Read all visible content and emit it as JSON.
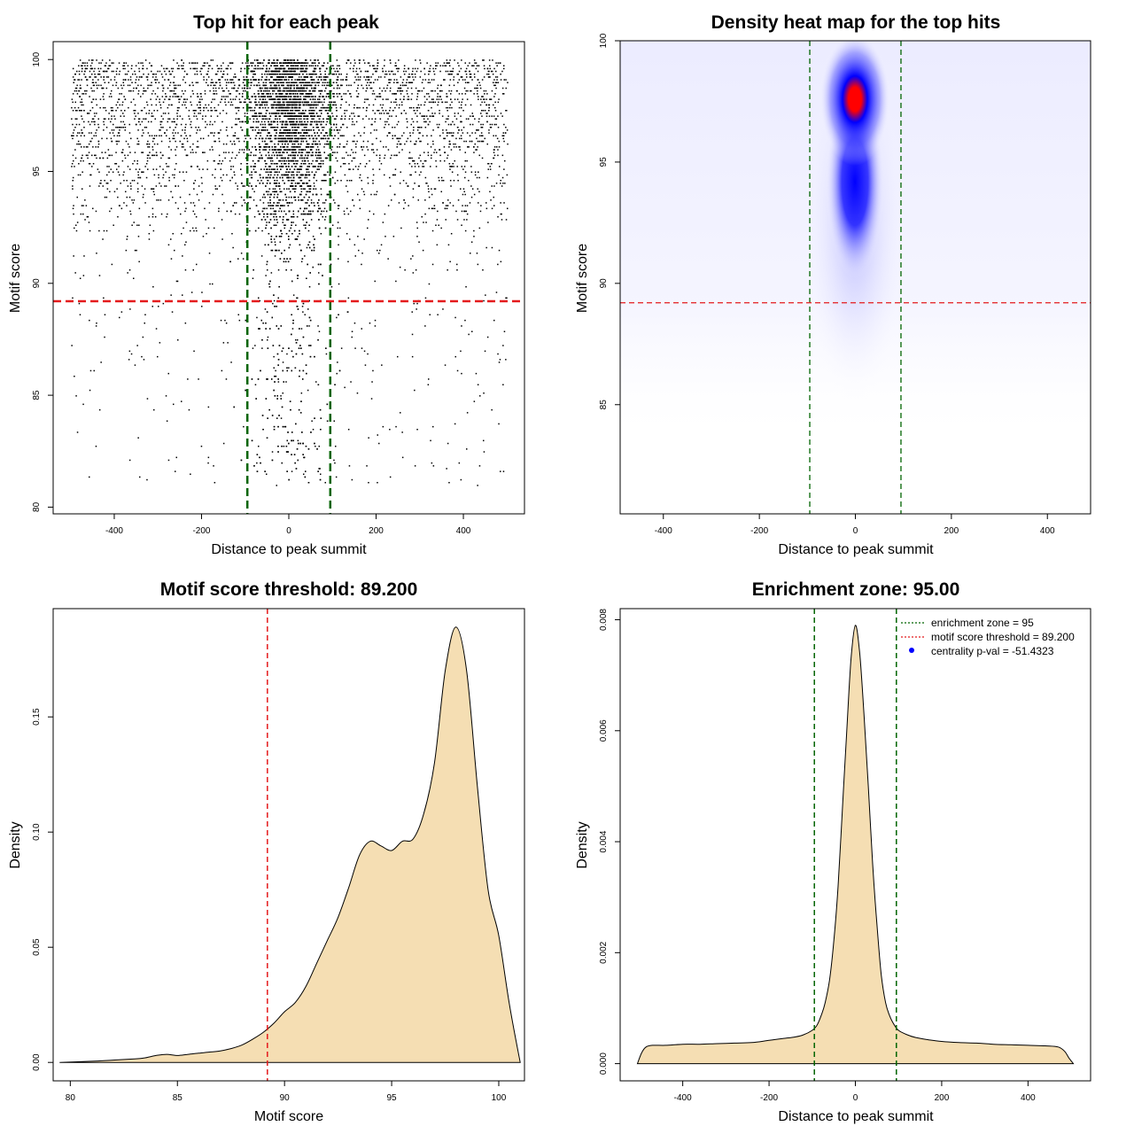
{
  "colors": {
    "green_line": "#006400",
    "red_line": "#e41a1c",
    "density_fill": "#f5deb3",
    "heat_low": "#ffffff",
    "heat_mid": "#0000ff",
    "heat_high": "#ff0000",
    "points": "#000000"
  },
  "chart_data": [
    {
      "type": "scatter",
      "title": "Top hit for each peak",
      "xlabel": "Distance to peak summit",
      "ylabel": "Motif score",
      "xlim": [
        -540,
        540
      ],
      "ylim": [
        79.7,
        100.8
      ],
      "xticks": [
        -400,
        -200,
        0,
        200,
        400
      ],
      "yticks": [
        80,
        85,
        90,
        95,
        100
      ],
      "vlines": [
        -95,
        95
      ],
      "hline": 89.2,
      "points_description": {
        "core": "dense band within about ±100 of summit, scores 88-100",
        "background": "uniform sparse hits from -500 to 500, mostly scores 89-100, sparse tail down to about 81"
      }
    },
    {
      "type": "heatmap",
      "title": "Density heat map for the top hits",
      "xlabel": "Distance to peak summit",
      "ylabel": "Motif score",
      "xlim": [
        -490,
        490
      ],
      "ylim": [
        80.5,
        100
      ],
      "xticks": [
        -400,
        -200,
        0,
        200,
        400
      ],
      "yticks": [
        85,
        90,
        95,
        100
      ],
      "vlines": [
        -95,
        95
      ],
      "hline": 89.2,
      "peak": {
        "x": 0,
        "y": 97.8
      }
    },
    {
      "type": "area",
      "title": "Motif score threshold: 89.200",
      "xlabel": "Motif score",
      "ylabel": "Density",
      "xlim": [
        79.2,
        101.2
      ],
      "ylim": [
        -0.008,
        0.197
      ],
      "xticks": [
        80,
        85,
        90,
        95,
        100
      ],
      "yticks": [
        0.0,
        0.05,
        0.1,
        0.15
      ],
      "ytick_labels": [
        "0.00",
        "0.05",
        "0.10",
        "0.15"
      ],
      "vline": 89.2,
      "x": [
        79.5,
        81,
        82,
        83,
        83.5,
        84,
        84.5,
        85,
        85.5,
        86,
        86.5,
        87,
        87.5,
        88,
        88.5,
        89,
        89.5,
        90,
        90.5,
        91,
        91.5,
        92,
        92.5,
        93,
        93.5,
        94,
        94.5,
        95,
        95.5,
        96,
        96.5,
        97,
        97.5,
        98,
        98.5,
        99,
        99.5,
        100,
        100.5,
        101
      ],
      "y": [
        0.0,
        0.0005,
        0.001,
        0.0015,
        0.002,
        0.003,
        0.0035,
        0.003,
        0.0035,
        0.004,
        0.0045,
        0.005,
        0.006,
        0.0075,
        0.01,
        0.013,
        0.017,
        0.022,
        0.026,
        0.033,
        0.043,
        0.053,
        0.063,
        0.076,
        0.09,
        0.096,
        0.094,
        0.092,
        0.096,
        0.097,
        0.108,
        0.13,
        0.17,
        0.189,
        0.17,
        0.12,
        0.075,
        0.055,
        0.025,
        0.0
      ]
    },
    {
      "type": "area",
      "title": "Enrichment zone: 95.00",
      "xlabel": "Distance to peak summit",
      "ylabel": "Density",
      "xlim": [
        -545,
        545
      ],
      "ylim": [
        -0.00031,
        0.0082
      ],
      "xticks": [
        -400,
        -200,
        0,
        200,
        400
      ],
      "yticks": [
        0.0,
        0.002,
        0.004,
        0.006,
        0.008
      ],
      "ytick_labels": [
        "0.000",
        "0.002",
        "0.004",
        "0.006",
        "0.008"
      ],
      "vlines": [
        -95,
        95
      ],
      "legend": [
        {
          "label": "enrichment zone = 95",
          "style": "green-dotted"
        },
        {
          "label": "motif score threshold = 89.200",
          "style": "red-dotted"
        },
        {
          "label": "centrality p-val = -51.4323",
          "style": "blue-dot"
        }
      ],
      "x": [
        -505,
        -495,
        -485,
        -470,
        -440,
        -400,
        -360,
        -320,
        -280,
        -240,
        -200,
        -170,
        -140,
        -120,
        -100,
        -90,
        -80,
        -70,
        -60,
        -50,
        -40,
        -30,
        -20,
        -10,
        0,
        10,
        20,
        30,
        40,
        50,
        60,
        70,
        80,
        90,
        100,
        120,
        140,
        170,
        200,
        240,
        280,
        320,
        360,
        400,
        440,
        470,
        485,
        495,
        505
      ],
      "y": [
        0.0,
        0.0002,
        0.0003,
        0.00033,
        0.00033,
        0.00035,
        0.00035,
        0.00036,
        0.00037,
        0.00038,
        0.00042,
        0.00045,
        0.00048,
        0.00052,
        0.0006,
        0.00068,
        0.00085,
        0.0011,
        0.0015,
        0.0022,
        0.0032,
        0.0046,
        0.006,
        0.0073,
        0.0079,
        0.0074,
        0.0063,
        0.005,
        0.0036,
        0.0025,
        0.0016,
        0.0011,
        0.00085,
        0.0007,
        0.0006,
        0.00052,
        0.00047,
        0.00043,
        0.0004,
        0.00038,
        0.00037,
        0.00035,
        0.00034,
        0.00033,
        0.00032,
        0.0003,
        0.00022,
        0.0001,
        0.0
      ]
    }
  ]
}
